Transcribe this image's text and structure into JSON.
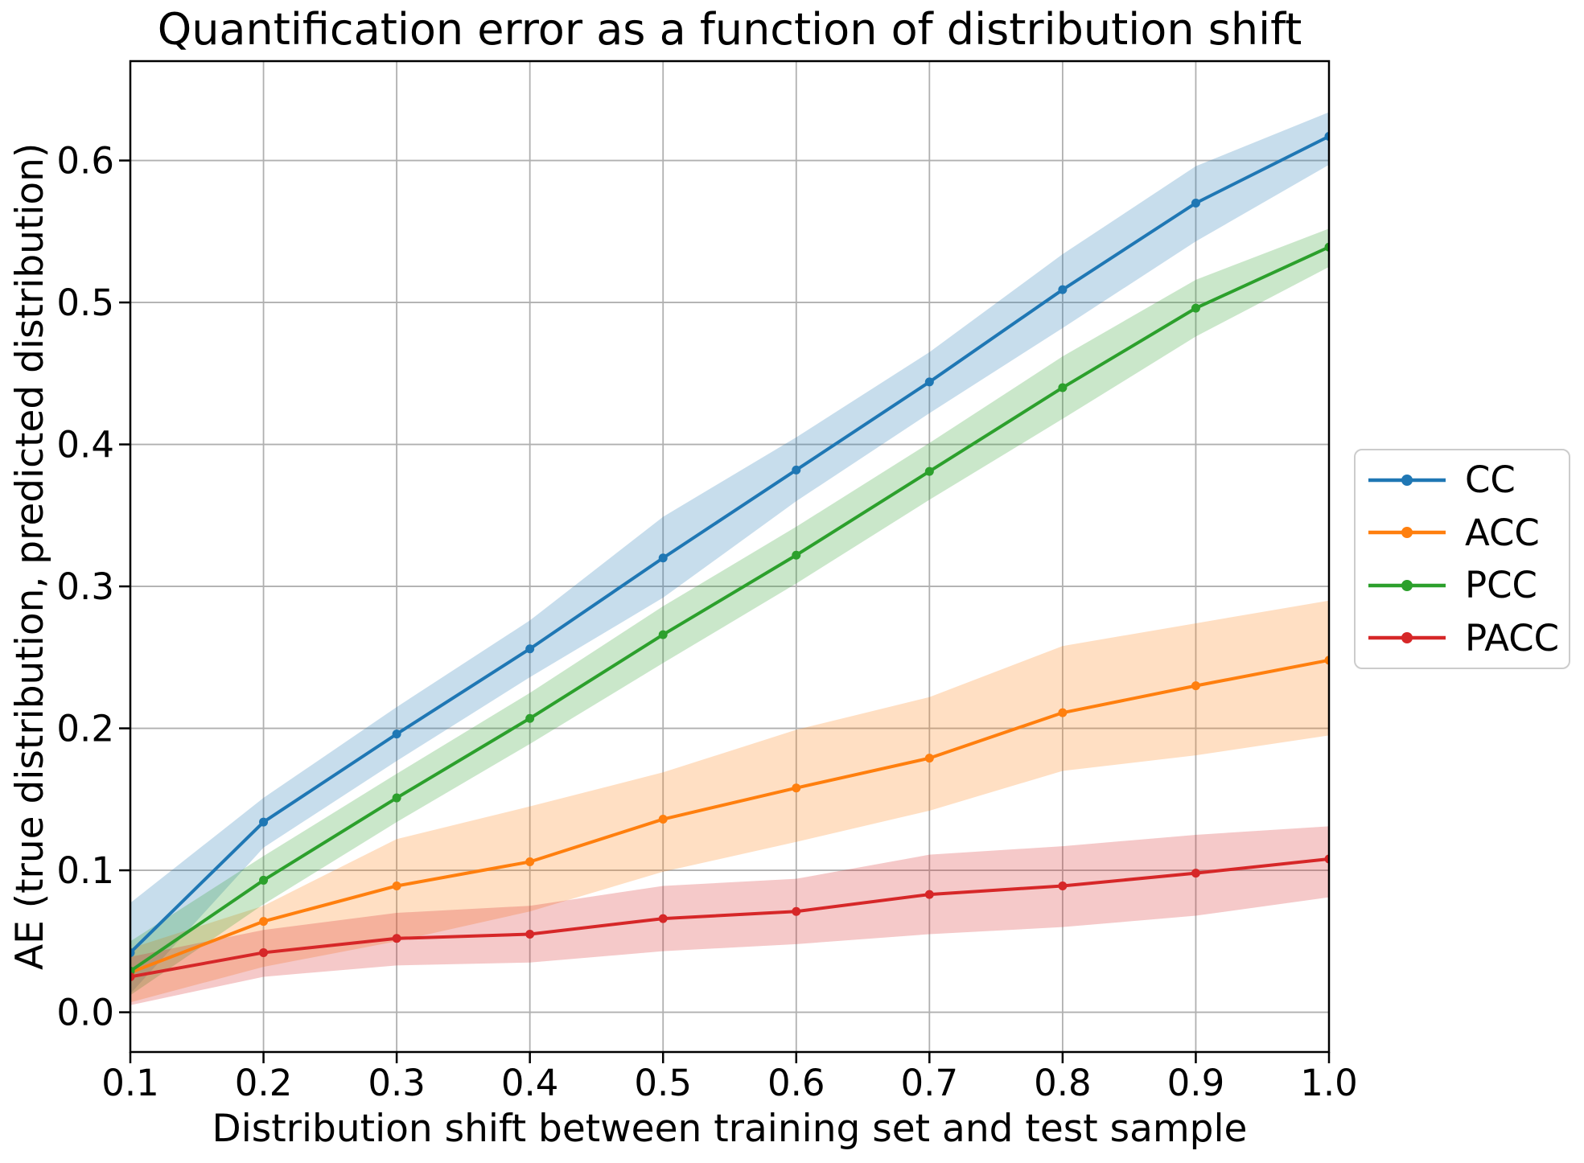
{
  "chart_data": {
    "type": "line",
    "title": "Quantification error as a function of distribution shift",
    "xlabel": "Distribution shift between training set and test sample",
    "ylabel": "AE (true distribution, predicted distribution)",
    "x": [
      0.1,
      0.2,
      0.3,
      0.4,
      0.5,
      0.6,
      0.7,
      0.8,
      0.9,
      1.0
    ],
    "xlim": [
      0.1,
      1.0
    ],
    "ylim": [
      -0.028,
      0.67
    ],
    "xticks": [
      "0.1",
      "0.2",
      "0.3",
      "0.4",
      "0.5",
      "0.6",
      "0.7",
      "0.8",
      "0.9",
      "1.0"
    ],
    "yticks": [
      "0.0",
      "0.1",
      "0.2",
      "0.3",
      "0.4",
      "0.5",
      "0.6"
    ],
    "grid": true,
    "grid_color": "#b0b0b0",
    "background_color": "#ffffff",
    "spine_color": "#000000",
    "legend_position": "center-right-outside",
    "band_opacity": 0.25,
    "series": [
      {
        "name": "CC",
        "color": "#1f77b4",
        "values": [
          0.042,
          0.134,
          0.196,
          0.256,
          0.32,
          0.382,
          0.444,
          0.509,
          0.57,
          0.617
        ],
        "band_low": [
          0.013,
          0.116,
          0.177,
          0.236,
          0.292,
          0.36,
          0.422,
          0.482,
          0.543,
          0.597
        ],
        "band_high": [
          0.077,
          0.151,
          0.215,
          0.276,
          0.349,
          0.405,
          0.465,
          0.534,
          0.596,
          0.634
        ]
      },
      {
        "name": "ACC",
        "color": "#ff7f0e",
        "values": [
          0.028,
          0.064,
          0.089,
          0.106,
          0.136,
          0.158,
          0.179,
          0.211,
          0.23,
          0.248
        ],
        "band_low": [
          0.007,
          0.032,
          0.05,
          0.071,
          0.099,
          0.12,
          0.142,
          0.17,
          0.181,
          0.195
        ],
        "band_high": [
          0.045,
          0.075,
          0.122,
          0.145,
          0.169,
          0.199,
          0.222,
          0.258,
          0.274,
          0.29
        ]
      },
      {
        "name": "PCC",
        "color": "#2ca02c",
        "values": [
          0.029,
          0.093,
          0.151,
          0.207,
          0.266,
          0.322,
          0.381,
          0.44,
          0.496,
          0.539
        ],
        "band_low": [
          0.012,
          0.076,
          0.134,
          0.189,
          0.246,
          0.302,
          0.361,
          0.418,
          0.476,
          0.525
        ],
        "band_high": [
          0.05,
          0.11,
          0.168,
          0.225,
          0.286,
          0.342,
          0.401,
          0.462,
          0.516,
          0.552
        ]
      },
      {
        "name": "PACC",
        "color": "#d62728",
        "values": [
          0.025,
          0.042,
          0.052,
          0.055,
          0.066,
          0.071,
          0.083,
          0.089,
          0.098,
          0.108
        ],
        "band_low": [
          0.005,
          0.025,
          0.033,
          0.035,
          0.043,
          0.048,
          0.055,
          0.06,
          0.068,
          0.081
        ],
        "band_high": [
          0.039,
          0.058,
          0.07,
          0.075,
          0.089,
          0.094,
          0.111,
          0.117,
          0.125,
          0.131
        ]
      }
    ]
  }
}
